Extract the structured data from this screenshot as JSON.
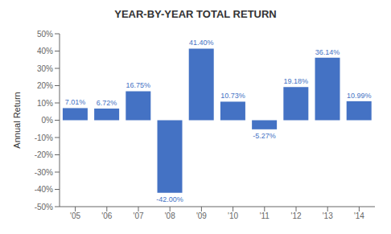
{
  "chart_data": {
    "type": "bar",
    "title": "YEAR-BY-YEAR TOTAL RETURN",
    "categories": [
      "'05",
      "'06",
      "'07",
      "'08",
      "'09",
      "'10",
      "'11",
      "'12",
      "'13",
      "'14"
    ],
    "values": [
      7.01,
      6.72,
      16.75,
      -42.0,
      41.4,
      10.73,
      -5.27,
      19.18,
      36.14,
      10.99
    ],
    "value_labels": [
      "7.01%",
      "6.72%",
      "16.75%",
      "-42.00%",
      "41.40%",
      "10.73%",
      "-5.27%",
      "19.18%",
      "36.14%",
      "10.99%"
    ],
    "data_labels": true,
    "color": "#4472C4",
    "ylabel": "Annual Return",
    "ylim": [
      -50,
      50
    ],
    "yticks": [
      {
        "value": -50,
        "label": "-50%"
      },
      {
        "value": -40,
        "label": "-40%"
      },
      {
        "value": -30,
        "label": "-30%"
      },
      {
        "value": -20,
        "label": "-20%"
      },
      {
        "value": -10,
        "label": "-10%"
      },
      {
        "value": 0,
        "label": "0%"
      },
      {
        "value": 10,
        "label": "10%"
      },
      {
        "value": 20,
        "label": "20%"
      },
      {
        "value": 30,
        "label": "30%"
      },
      {
        "value": 40,
        "label": "40%"
      },
      {
        "value": 50,
        "label": "50%"
      }
    ],
    "grid": false
  }
}
